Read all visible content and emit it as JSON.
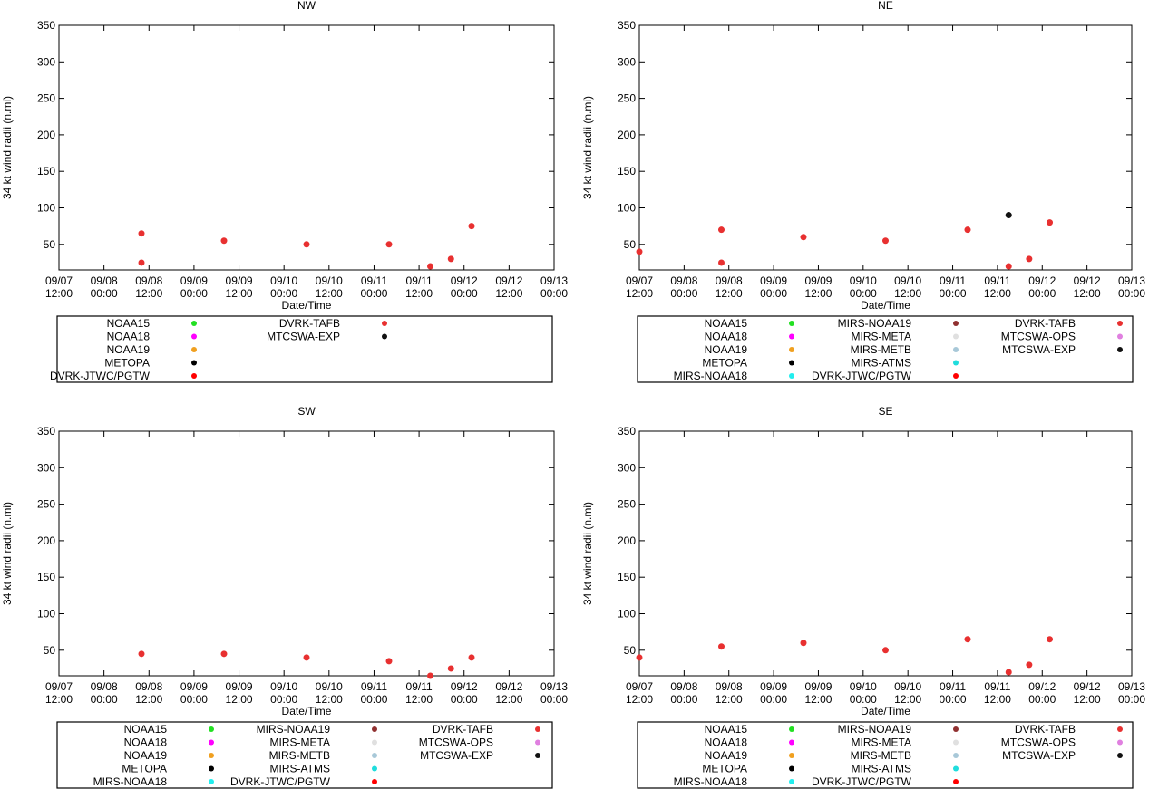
{
  "colors": {
    "NOAA15": "#22e022",
    "NOAA18": "#ff00ff",
    "NOAA19": "#f0a020",
    "METOPA": "#000000",
    "MIRS-NOAA18": "#22eeee",
    "MIRS-NOAA19": "#903030",
    "MIRS-META": "#e0e0e0",
    "MIRS-METB": "#a8c8d8",
    "MIRS-ATMS": "#20dddd",
    "DVRK-JTWC/PGTW": "#ff0000",
    "DVRK-TAFB": "#e83030",
    "MTCSWA-OPS": "#e080e0",
    "MTCSWA-EXP": "#111111"
  },
  "chart_data": [
    {
      "type": "scatter",
      "title": "NW",
      "xlabel": "Date/Time",
      "ylabel": "34 kt wind radii (n.mi)",
      "xlim": [
        0,
        6
      ],
      "ylim": [
        15,
        350
      ],
      "yticks": [
        50,
        100,
        150,
        200,
        250,
        300,
        350
      ],
      "xtick_labels": [
        [
          "09/07",
          "12:00"
        ],
        [
          "09/08",
          "00:00"
        ],
        [
          "09/08",
          "12:00"
        ],
        [
          "09/09",
          "00:00"
        ],
        [
          "09/09",
          "12:00"
        ],
        [
          "09/10",
          "00:00"
        ],
        [
          "09/10",
          "12:00"
        ],
        [
          "09/11",
          "00:00"
        ],
        [
          "09/11",
          "12:00"
        ],
        [
          "09/12",
          "00:00"
        ],
        [
          "09/12",
          "12:00"
        ],
        [
          "09/13",
          "00:00"
        ]
      ],
      "legend_columns": [
        [
          "NOAA15",
          "NOAA18",
          "NOAA19",
          "METOPA",
          "DVRK-JTWC/PGTW"
        ],
        [
          "DVRK-TAFB",
          "MTCSWA-EXP"
        ]
      ],
      "series": [
        {
          "name": "DVRK-TAFB",
          "x": [
            1.0,
            1.0,
            2.0,
            3.0,
            4.0,
            4.5,
            4.75,
            5.0
          ],
          "y": [
            65,
            25,
            55,
            50,
            50,
            20,
            30,
            75
          ]
        }
      ]
    },
    {
      "type": "scatter",
      "title": "NE",
      "xlabel": "Date/Time",
      "ylabel": "34 kt wind radii (n.mi)",
      "xlim": [
        0,
        6
      ],
      "ylim": [
        15,
        350
      ],
      "yticks": [
        50,
        100,
        150,
        200,
        250,
        300,
        350
      ],
      "xtick_labels": [
        [
          "09/07",
          "12:00"
        ],
        [
          "09/08",
          "00:00"
        ],
        [
          "09/08",
          "12:00"
        ],
        [
          "09/09",
          "00:00"
        ],
        [
          "09/09",
          "12:00"
        ],
        [
          "09/10",
          "00:00"
        ],
        [
          "09/10",
          "12:00"
        ],
        [
          "09/11",
          "00:00"
        ],
        [
          "09/11",
          "12:00"
        ],
        [
          "09/12",
          "00:00"
        ],
        [
          "09/12",
          "12:00"
        ],
        [
          "09/13",
          "00:00"
        ]
      ],
      "legend_columns": [
        [
          "NOAA15",
          "NOAA18",
          "NOAA19",
          "METOPA",
          "MIRS-NOAA18"
        ],
        [
          "MIRS-NOAA19",
          "MIRS-META",
          "MIRS-METB",
          "MIRS-ATMS",
          "DVRK-JTWC/PGTW"
        ],
        [
          "DVRK-TAFB",
          "MTCSWA-OPS",
          "MTCSWA-EXP"
        ]
      ],
      "series": [
        {
          "name": "DVRK-TAFB",
          "x": [
            0.0,
            1.0,
            1.0,
            2.0,
            3.0,
            4.0,
            4.5,
            4.75,
            5.0
          ],
          "y": [
            40,
            70,
            25,
            60,
            55,
            70,
            20,
            30,
            80
          ]
        },
        {
          "name": "MTCSWA-EXP",
          "x": [
            4.5
          ],
          "y": [
            90
          ]
        }
      ]
    },
    {
      "type": "scatter",
      "title": "SW",
      "xlabel": "Date/Time",
      "ylabel": "34 kt wind radii (n.mi)",
      "xlim": [
        0,
        6
      ],
      "ylim": [
        15,
        350
      ],
      "yticks": [
        50,
        100,
        150,
        200,
        250,
        300,
        350
      ],
      "xtick_labels": [
        [
          "09/07",
          "12:00"
        ],
        [
          "09/08",
          "00:00"
        ],
        [
          "09/08",
          "12:00"
        ],
        [
          "09/09",
          "00:00"
        ],
        [
          "09/09",
          "12:00"
        ],
        [
          "09/10",
          "00:00"
        ],
        [
          "09/10",
          "12:00"
        ],
        [
          "09/11",
          "00:00"
        ],
        [
          "09/11",
          "12:00"
        ],
        [
          "09/12",
          "00:00"
        ],
        [
          "09/12",
          "12:00"
        ],
        [
          "09/13",
          "00:00"
        ]
      ],
      "legend_columns": [
        [
          "NOAA15",
          "NOAA18",
          "NOAA19",
          "METOPA",
          "MIRS-NOAA18"
        ],
        [
          "MIRS-NOAA19",
          "MIRS-META",
          "MIRS-METB",
          "MIRS-ATMS",
          "DVRK-JTWC/PGTW"
        ],
        [
          "DVRK-TAFB",
          "MTCSWA-OPS",
          "MTCSWA-EXP"
        ]
      ],
      "series": [
        {
          "name": "DVRK-TAFB",
          "x": [
            1.0,
            2.0,
            3.0,
            4.0,
            4.5,
            4.75,
            5.0
          ],
          "y": [
            45,
            45,
            40,
            35,
            15,
            25,
            40
          ]
        }
      ]
    },
    {
      "type": "scatter",
      "title": "SE",
      "xlabel": "Date/Time",
      "ylabel": "34 kt wind radii (n.mi)",
      "xlim": [
        0,
        6
      ],
      "ylim": [
        15,
        350
      ],
      "yticks": [
        50,
        100,
        150,
        200,
        250,
        300,
        350
      ],
      "xtick_labels": [
        [
          "09/07",
          "12:00"
        ],
        [
          "09/08",
          "00:00"
        ],
        [
          "09/08",
          "12:00"
        ],
        [
          "09/09",
          "00:00"
        ],
        [
          "09/09",
          "12:00"
        ],
        [
          "09/10",
          "00:00"
        ],
        [
          "09/10",
          "12:00"
        ],
        [
          "09/11",
          "00:00"
        ],
        [
          "09/11",
          "12:00"
        ],
        [
          "09/12",
          "00:00"
        ],
        [
          "09/12",
          "12:00"
        ],
        [
          "09/13",
          "00:00"
        ]
      ],
      "legend_columns": [
        [
          "NOAA15",
          "NOAA18",
          "NOAA19",
          "METOPA",
          "MIRS-NOAA18"
        ],
        [
          "MIRS-NOAA19",
          "MIRS-META",
          "MIRS-METB",
          "MIRS-ATMS",
          "DVRK-JTWC/PGTW"
        ],
        [
          "DVRK-TAFB",
          "MTCSWA-OPS",
          "MTCSWA-EXP"
        ]
      ],
      "series": [
        {
          "name": "DVRK-TAFB",
          "x": [
            0.0,
            1.0,
            2.0,
            3.0,
            4.0,
            4.5,
            4.75,
            5.0
          ],
          "y": [
            40,
            55,
            60,
            50,
            65,
            20,
            30,
            65
          ]
        }
      ]
    }
  ]
}
